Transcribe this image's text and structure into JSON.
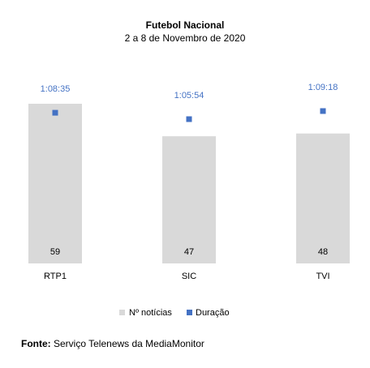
{
  "chart_data": {
    "type": "bar",
    "title": "Futebol Nacional",
    "subtitle": "2 a 8 de Novembro de 2020",
    "categories": [
      "RTP1",
      "SIC",
      "TVI"
    ],
    "series": [
      {
        "name": "Nº notícias",
        "kind": "bar",
        "color": "#d9d9d9",
        "values": [
          59,
          47,
          48
        ]
      },
      {
        "name": "Duração",
        "kind": "point",
        "color": "#4472c4",
        "values": [
          "1:08:35",
          "1:05:54",
          "1:09:18"
        ],
        "values_seconds": [
          4115,
          3954,
          4158
        ]
      }
    ],
    "ylim_bars": [
      0,
      60
    ],
    "legend_position": "bottom",
    "grid": false,
    "data_label_color": "#4472c4"
  },
  "source": {
    "label": "Fonte:",
    "text": "Serviço Telenews da MediaMonitor"
  }
}
